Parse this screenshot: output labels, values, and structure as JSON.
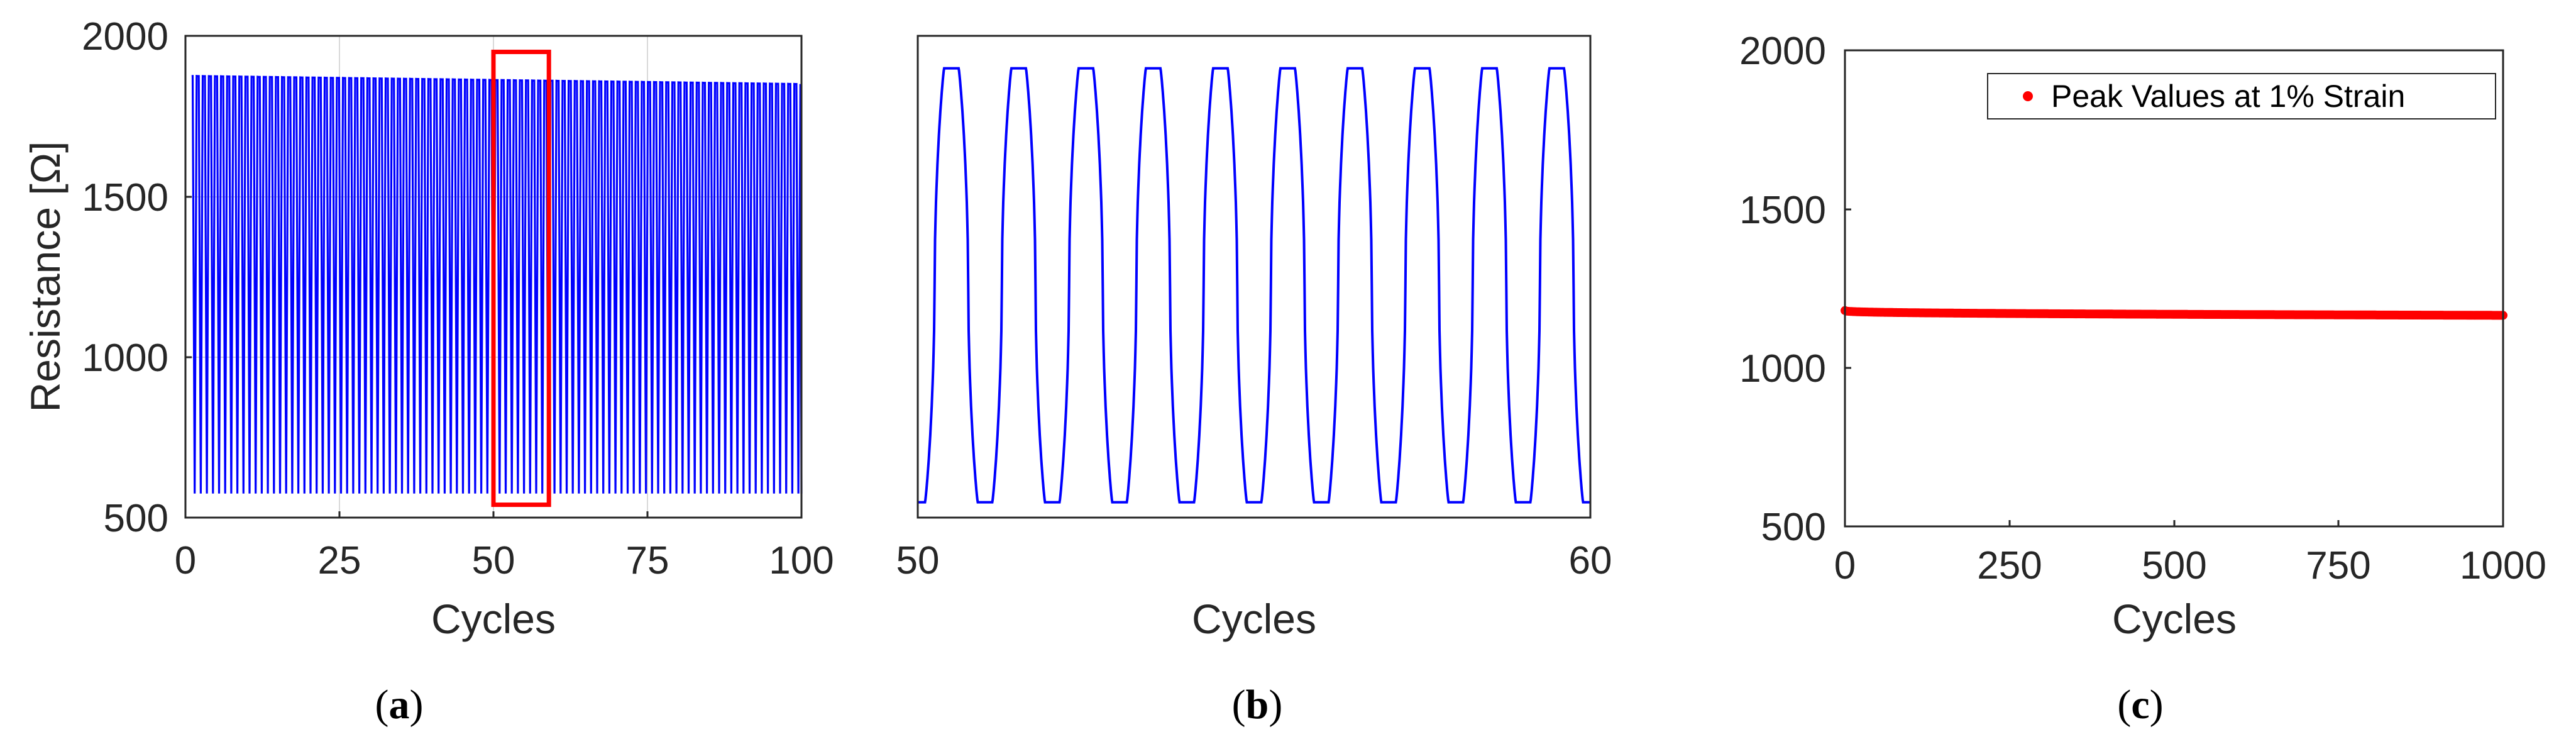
{
  "colors": {
    "signal": "#0000ff",
    "highlight": "#ff0000",
    "peaks": "#ff0000",
    "axes": "#262626"
  },
  "chart_data": [
    {
      "id": "a",
      "type": "line",
      "caption": {
        "open": "(",
        "letter": "a",
        "close": ")"
      },
      "xlabel": "Cycles",
      "ylabel": "Resistance [Ω]",
      "xlim": [
        0,
        100
      ],
      "ylim": [
        500,
        2000
      ],
      "xticks": [
        "0",
        "25",
        "50",
        "75",
        "100"
      ],
      "yticks": [
        "500",
        "1000",
        "1500",
        "2000"
      ],
      "grid": true,
      "series": [
        {
          "cycles": 100,
          "x_start": 1,
          "x_end": 100,
          "peak_start": 1875,
          "peak_end": 1850,
          "valley": 575
        }
      ],
      "highlight_box": {
        "x": [
          50,
          59
        ],
        "y": [
          540,
          1950
        ]
      }
    },
    {
      "id": "b",
      "type": "line",
      "caption": {
        "open": "(",
        "letter": "b",
        "close": ")"
      },
      "xlabel": "Cycles",
      "xlim": [
        50,
        60
      ],
      "ylim": [
        540,
        1950
      ],
      "xticks": [
        "50",
        "60"
      ],
      "series": [
        {
          "cycles": 10,
          "x_start": 50,
          "x_end": 60,
          "peak": 1855,
          "valley": 585
        }
      ]
    },
    {
      "id": "c",
      "type": "scatter",
      "caption": {
        "open": "(",
        "letter": "c",
        "close": ")"
      },
      "xlabel": "Cycles",
      "xlim": [
        0,
        1000
      ],
      "ylim": [
        500,
        2000
      ],
      "xticks": [
        "0",
        "250",
        "500",
        "750",
        "1000"
      ],
      "yticks": [
        "500",
        "1000",
        "1500",
        "2000"
      ],
      "legend": {
        "position": "top-right",
        "label": "Peak Values at 1% Strain"
      },
      "series": [
        {
          "name": "Peak Values at 1% Strain",
          "x_start": 0,
          "x_end": 1000,
          "y_start": 1180,
          "y_end": 1165
        }
      ]
    }
  ]
}
